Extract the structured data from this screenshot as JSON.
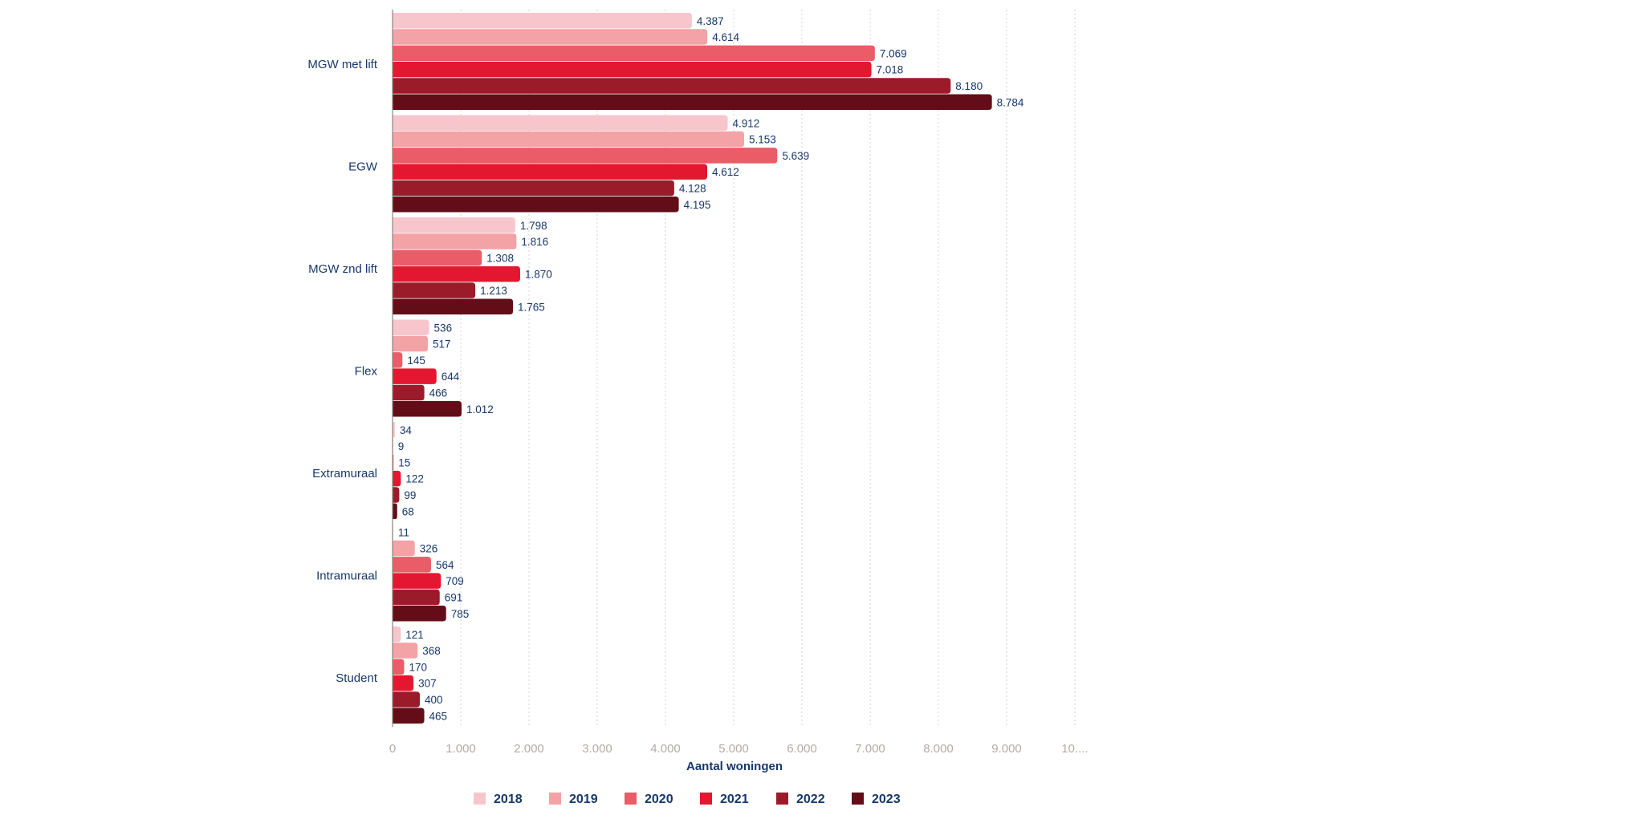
{
  "chart_data": {
    "type": "bar",
    "orientation": "horizontal",
    "categories": [
      "MGW met lift",
      "EGW",
      "MGW znd lift",
      "Flex",
      "Extramuraal",
      "Intramuraal",
      "Student"
    ],
    "series": [
      {
        "name": "2018",
        "color": "#f7c6cc",
        "values": [
          4387,
          4912,
          1798,
          536,
          34,
          11,
          121
        ],
        "labels": [
          "4.387",
          "4.912",
          "1.798",
          "536",
          "34",
          "11",
          "121"
        ]
      },
      {
        "name": "2019",
        "color": "#f3a2a6",
        "values": [
          4614,
          5153,
          1816,
          517,
          9,
          326,
          368
        ],
        "labels": [
          "4.614",
          "5.153",
          "1.816",
          "517",
          "9",
          "326",
          "368"
        ]
      },
      {
        "name": "2020",
        "color": "#ea5c67",
        "values": [
          7069,
          5639,
          1308,
          145,
          15,
          564,
          170
        ],
        "labels": [
          "7.069",
          "5.639",
          "1.308",
          "145",
          "15",
          "564",
          "170"
        ]
      },
      {
        "name": "2021",
        "color": "#e3172f",
        "values": [
          7018,
          4612,
          1870,
          644,
          122,
          709,
          307
        ],
        "labels": [
          "7.018",
          "4.612",
          "1.870",
          "644",
          "122",
          "709",
          "307"
        ]
      },
      {
        "name": "2022",
        "color": "#9c1b2a",
        "values": [
          8180,
          4128,
          1213,
          466,
          99,
          691,
          400
        ],
        "labels": [
          "8.180",
          "4.128",
          "1.213",
          "466",
          "99",
          "691",
          "400"
        ]
      },
      {
        "name": "2023",
        "color": "#620d17",
        "values": [
          8784,
          4195,
          1765,
          1012,
          68,
          785,
          465
        ],
        "labels": [
          "8.784",
          "4.195",
          "1.765",
          "1.012",
          "68",
          "785",
          "465"
        ]
      }
    ],
    "xlabel": "Aantal woningen",
    "xlim": [
      0,
      10000
    ],
    "xticks": [
      0,
      1000,
      2000,
      3000,
      4000,
      5000,
      6000,
      7000,
      8000,
      9000,
      10000
    ],
    "xtick_labels": [
      "0",
      "1.000",
      "2.000",
      "3.000",
      "4.000",
      "5.000",
      "6.000",
      "7.000",
      "8.000",
      "9.000",
      "10...."
    ],
    "grid": "vertical dotted",
    "legend_position": "bottom",
    "colors": {
      "label_text": "#17386b",
      "tick_text": "#b5aca3",
      "grid": "#d8d2cb",
      "axis": "#8d8680"
    }
  }
}
